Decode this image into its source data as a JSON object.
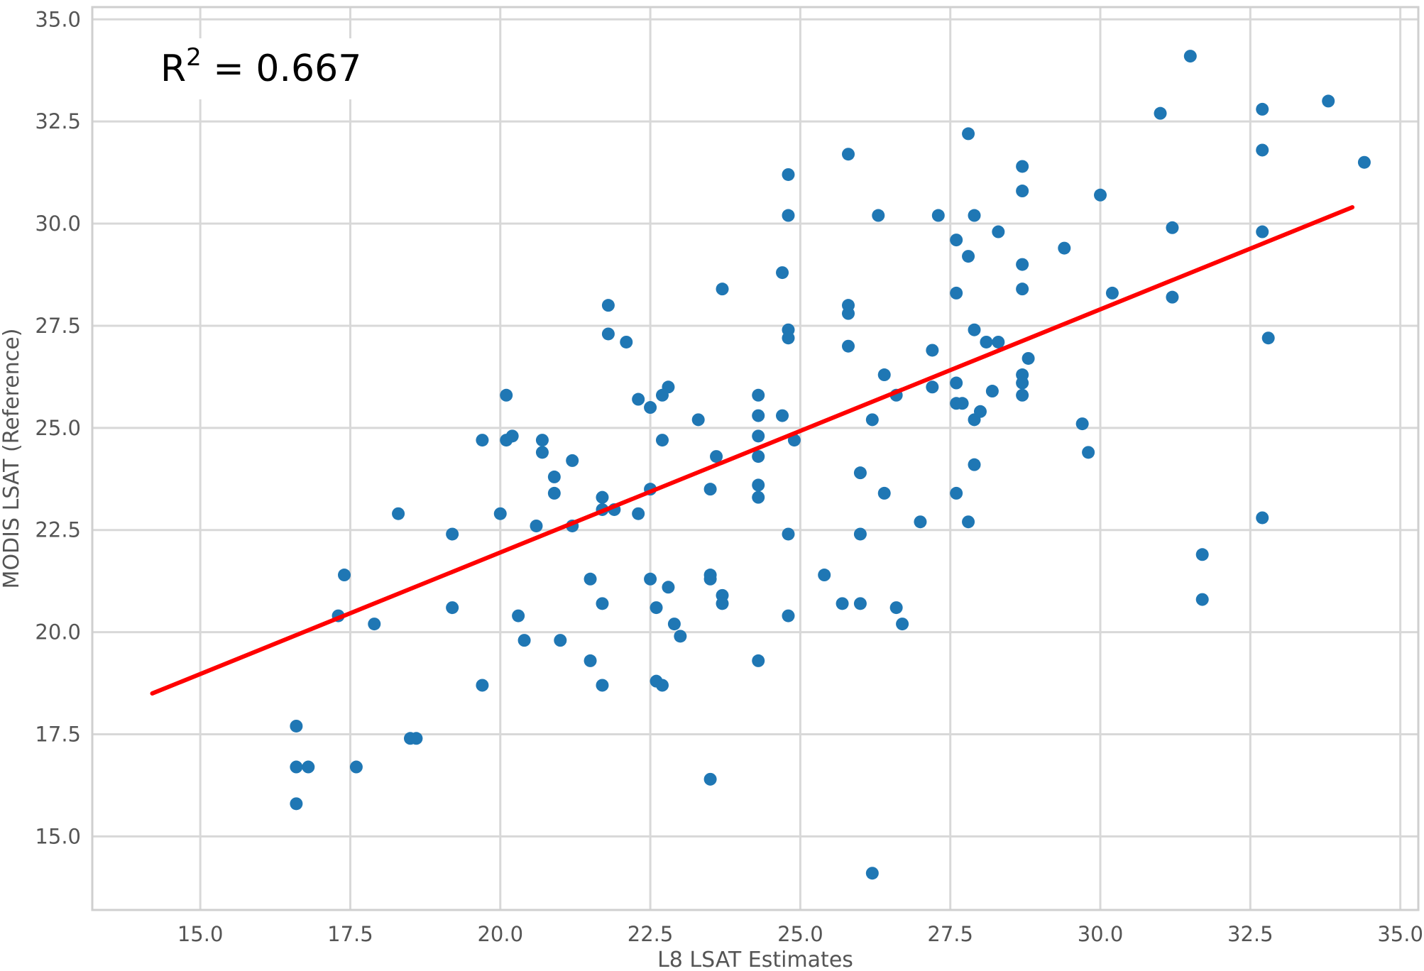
{
  "chart_data": {
    "type": "scatter",
    "title": "",
    "xlabel": "L8 LSAT Estimates",
    "ylabel": "MODIS LSAT (Reference)",
    "xlim": [
      13.2,
      35.3
    ],
    "ylim": [
      13.2,
      35.3
    ],
    "xticks": [
      "15.0",
      "17.5",
      "20.0",
      "22.5",
      "25.0",
      "27.5",
      "30.0",
      "32.5",
      "35.0"
    ],
    "yticks": [
      "15.0",
      "17.5",
      "20.0",
      "22.5",
      "25.0",
      "27.5",
      "30.0",
      "32.5",
      "35.0"
    ],
    "grid": true,
    "annotation": {
      "prefix": "R",
      "superscript": "2",
      "text": " = 0.667"
    },
    "colors": {
      "points": "#1f77b4",
      "fit_line": "#ff0000",
      "grid": "#d8d8d8"
    },
    "fit_line": {
      "x": [
        14.2,
        34.2
      ],
      "y": [
        18.5,
        30.4
      ]
    },
    "points": [
      [
        16.6,
        17.7
      ],
      [
        16.6,
        16.7
      ],
      [
        16.8,
        16.7
      ],
      [
        16.6,
        15.8
      ],
      [
        17.6,
        16.7
      ],
      [
        18.5,
        17.4
      ],
      [
        18.6,
        17.4
      ],
      [
        17.3,
        20.4
      ],
      [
        17.4,
        21.4
      ],
      [
        17.9,
        20.2
      ],
      [
        18.3,
        22.9
      ],
      [
        19.2,
        22.4
      ],
      [
        19.2,
        20.6
      ],
      [
        19.7,
        24.7
      ],
      [
        19.7,
        18.7
      ],
      [
        20.0,
        22.9
      ],
      [
        20.1,
        25.8
      ],
      [
        20.1,
        24.7
      ],
      [
        20.2,
        24.8
      ],
      [
        20.3,
        20.4
      ],
      [
        20.4,
        19.8
      ],
      [
        20.6,
        22.6
      ],
      [
        20.7,
        24.7
      ],
      [
        20.7,
        24.4
      ],
      [
        20.9,
        23.4
      ],
      [
        20.9,
        23.8
      ],
      [
        21.0,
        19.8
      ],
      [
        21.2,
        24.2
      ],
      [
        21.2,
        22.6
      ],
      [
        21.5,
        21.3
      ],
      [
        21.5,
        19.3
      ],
      [
        21.7,
        23.3
      ],
      [
        21.7,
        23.0
      ],
      [
        21.7,
        20.7
      ],
      [
        21.7,
        18.7
      ],
      [
        21.8,
        28.0
      ],
      [
        21.8,
        27.3
      ],
      [
        21.9,
        23.0
      ],
      [
        22.1,
        27.1
      ],
      [
        22.3,
        22.9
      ],
      [
        22.3,
        25.7
      ],
      [
        22.5,
        25.5
      ],
      [
        22.5,
        23.5
      ],
      [
        22.5,
        21.3
      ],
      [
        22.6,
        20.6
      ],
      [
        22.6,
        18.8
      ],
      [
        22.7,
        25.8
      ],
      [
        22.7,
        24.7
      ],
      [
        22.7,
        18.7
      ],
      [
        22.8,
        26.0
      ],
      [
        22.8,
        21.1
      ],
      [
        22.9,
        20.2
      ],
      [
        23.0,
        19.9
      ],
      [
        23.3,
        25.2
      ],
      [
        23.5,
        23.5
      ],
      [
        23.5,
        21.4
      ],
      [
        23.5,
        21.3
      ],
      [
        23.5,
        16.4
      ],
      [
        23.6,
        24.3
      ],
      [
        23.7,
        28.4
      ],
      [
        23.7,
        20.9
      ],
      [
        23.7,
        20.7
      ],
      [
        24.3,
        25.8
      ],
      [
        24.3,
        25.3
      ],
      [
        24.3,
        24.8
      ],
      [
        24.3,
        24.3
      ],
      [
        24.3,
        23.6
      ],
      [
        24.3,
        23.3
      ],
      [
        24.3,
        19.3
      ],
      [
        24.7,
        25.3
      ],
      [
        24.7,
        28.8
      ],
      [
        24.8,
        31.2
      ],
      [
        24.8,
        30.2
      ],
      [
        24.8,
        27.4
      ],
      [
        24.8,
        27.2
      ],
      [
        24.8,
        22.4
      ],
      [
        24.8,
        20.4
      ],
      [
        24.9,
        24.7
      ],
      [
        25.4,
        21.4
      ],
      [
        25.8,
        31.7
      ],
      [
        25.8,
        28.0
      ],
      [
        25.8,
        27.8
      ],
      [
        25.8,
        27.0
      ],
      [
        25.7,
        20.7
      ],
      [
        26.0,
        23.9
      ],
      [
        26.0,
        22.4
      ],
      [
        26.0,
        20.7
      ],
      [
        26.2,
        25.2
      ],
      [
        26.2,
        14.1
      ],
      [
        26.3,
        30.2
      ],
      [
        26.4,
        26.3
      ],
      [
        26.4,
        23.4
      ],
      [
        26.6,
        25.8
      ],
      [
        26.6,
        20.6
      ],
      [
        26.7,
        20.2
      ],
      [
        27.0,
        22.7
      ],
      [
        27.2,
        26.9
      ],
      [
        27.2,
        26.0
      ],
      [
        27.3,
        30.2
      ],
      [
        27.6,
        28.3
      ],
      [
        27.6,
        29.6
      ],
      [
        27.6,
        26.1
      ],
      [
        27.6,
        25.6
      ],
      [
        27.7,
        25.6
      ],
      [
        27.6,
        23.4
      ],
      [
        27.8,
        22.7
      ],
      [
        27.8,
        32.2
      ],
      [
        27.8,
        29.2
      ],
      [
        27.9,
        30.2
      ],
      [
        27.9,
        27.4
      ],
      [
        27.9,
        25.2
      ],
      [
        27.9,
        24.1
      ],
      [
        28.1,
        27.1
      ],
      [
        28.0,
        25.4
      ],
      [
        28.2,
        25.9
      ],
      [
        28.3,
        29.8
      ],
      [
        28.3,
        27.1
      ],
      [
        28.7,
        31.4
      ],
      [
        28.7,
        30.8
      ],
      [
        28.7,
        29.0
      ],
      [
        28.7,
        28.4
      ],
      [
        28.7,
        26.3
      ],
      [
        28.7,
        26.1
      ],
      [
        28.7,
        25.8
      ],
      [
        28.8,
        26.7
      ],
      [
        29.4,
        29.4
      ],
      [
        29.7,
        25.1
      ],
      [
        29.8,
        24.4
      ],
      [
        30.0,
        30.7
      ],
      [
        30.2,
        28.3
      ],
      [
        31.0,
        32.7
      ],
      [
        31.2,
        29.9
      ],
      [
        31.2,
        28.2
      ],
      [
        31.5,
        34.1
      ],
      [
        31.7,
        21.9
      ],
      [
        31.7,
        20.8
      ],
      [
        32.7,
        32.8
      ],
      [
        32.7,
        31.8
      ],
      [
        32.7,
        29.8
      ],
      [
        32.7,
        22.8
      ],
      [
        32.8,
        27.2
      ],
      [
        33.8,
        33.0
      ],
      [
        34.4,
        31.5
      ]
    ]
  }
}
